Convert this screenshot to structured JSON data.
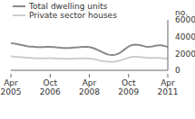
{
  "chart_data": {
    "type": "line",
    "y_label": "no.",
    "legend": "top left",
    "grid": false,
    "categories": [
      "Apr 2005",
      null,
      null,
      null,
      null,
      null,
      null,
      null,
      null,
      null,
      null,
      null,
      null,
      null,
      null,
      null,
      null,
      null,
      "Oct 2006",
      null,
      null,
      null,
      null,
      null,
      null,
      null,
      null,
      null,
      null,
      null,
      null,
      null,
      null,
      null,
      null,
      null,
      "Apr 2008",
      null,
      null,
      null,
      null,
      null,
      null,
      null,
      null,
      null,
      null,
      null,
      null,
      null,
      null,
      null,
      null,
      null,
      "Oct 2009",
      null,
      null,
      null,
      null,
      null,
      null,
      null,
      null,
      null,
      null,
      null,
      null,
      null,
      null,
      null,
      null,
      null,
      "Apr 2011"
    ],
    "series": [
      {
        "name": "Total dwelling units",
        "color": "#8a8a8a",
        "values": [
          3250,
          3200,
          3150,
          3100,
          3050,
          3000,
          2950,
          2900,
          2850,
          2820,
          2800,
          2780,
          2760,
          2750,
          2750,
          2760,
          2780,
          2800,
          2790,
          2770,
          2750,
          2720,
          2700,
          2680,
          2660,
          2650,
          2650,
          2660,
          2680,
          2700,
          2720,
          2740,
          2760,
          2780,
          2790,
          2780,
          2750,
          2700,
          2620,
          2520,
          2400,
          2280,
          2150,
          2030,
          1930,
          1860,
          1820,
          1820,
          1860,
          1950,
          2080,
          2250,
          2450,
          2650,
          2820,
          2950,
          3020,
          3050,
          3040,
          3000,
          2950,
          2880,
          2820,
          2790,
          2800,
          2840,
          2900,
          2950,
          2980,
          2970,
          2920,
          2850,
          2780
        ]
      },
      {
        "name": "Private sector houses",
        "color": "#cccccc",
        "values": [
          1650,
          1630,
          1610,
          1590,
          1570,
          1550,
          1530,
          1510,
          1490,
          1470,
          1450,
          1440,
          1430,
          1420,
          1420,
          1420,
          1430,
          1440,
          1440,
          1430,
          1420,
          1400,
          1390,
          1380,
          1370,
          1360,
          1360,
          1370,
          1380,
          1390,
          1400,
          1410,
          1420,
          1430,
          1430,
          1420,
          1400,
          1370,
          1330,
          1280,
          1220,
          1160,
          1110,
          1070,
          1040,
          1020,
          1010,
          1020,
          1050,
          1100,
          1170,
          1250,
          1330,
          1420,
          1500,
          1560,
          1600,
          1610,
          1600,
          1580,
          1550,
          1520,
          1490,
          1470,
          1460,
          1460,
          1470,
          1470,
          1460,
          1450,
          1430,
          1410,
          1390
        ]
      }
    ],
    "ylim": [
      0,
      6000
    ],
    "yticks": [
      0,
      2000,
      4000,
      6000
    ]
  }
}
